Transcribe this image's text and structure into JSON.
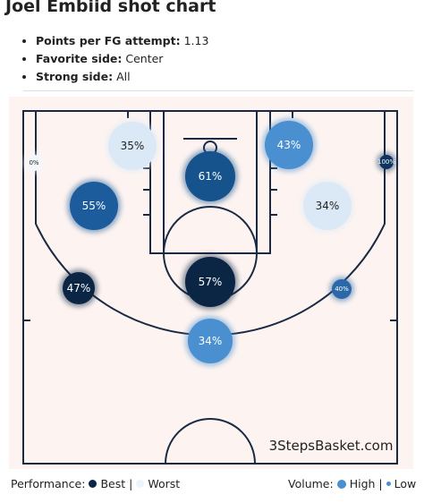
{
  "header": {
    "title": "Joel Embiid shot chart"
  },
  "stats": [
    {
      "label": "Points per FG attempt:",
      "value": "1.13"
    },
    {
      "label": "Favorite side:",
      "value": "Center"
    },
    {
      "label": "Strong side:",
      "value": "All"
    }
  ],
  "zones": [
    {
      "label": "35%",
      "color": "#dbe9f6"
    },
    {
      "label": "0%",
      "color": "#f3f7fb"
    },
    {
      "label": "61%",
      "color": "#16528c"
    },
    {
      "label": "43%",
      "color": "#4a8fcf"
    },
    {
      "label": "100%",
      "color": "#0d3361"
    },
    {
      "label": "55%",
      "color": "#1d5c9c"
    },
    {
      "label": "34%",
      "color": "#dbe9f6"
    },
    {
      "label": "47%",
      "color": "#0b2545"
    },
    {
      "label": "57%",
      "color": "#0b2545"
    },
    {
      "label": "40%",
      "color": "#2a68a8"
    },
    {
      "label": "34%",
      "color": "#4a8fcf"
    }
  ],
  "watermark": "3StepsBasket.com",
  "legend": {
    "performance": {
      "title": "Performance:",
      "best": "Best |",
      "worst": "Worst",
      "best_color": "#0b2545",
      "worst_color": "#eef4fb"
    },
    "volume": {
      "title": "Volume:",
      "high": "High |",
      "low": "Low",
      "color": "#4a8fcf"
    }
  }
}
